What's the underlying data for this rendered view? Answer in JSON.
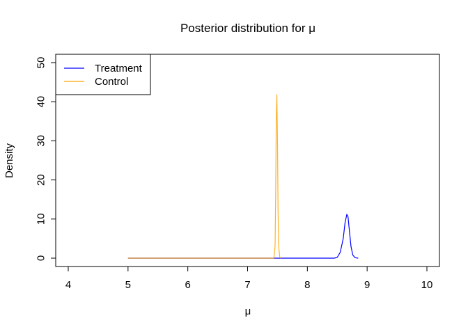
{
  "chart_data": {
    "type": "line",
    "title": "Posterior distribution for μ",
    "xlabel": "μ",
    "ylabel": "Density",
    "xlim": [
      4,
      10
    ],
    "ylim": [
      0,
      50
    ],
    "xticks": [
      4,
      5,
      6,
      7,
      8,
      9,
      10
    ],
    "yticks": [
      0,
      10,
      20,
      30,
      40,
      50
    ],
    "legend_position": "top-left",
    "grid": false,
    "series": [
      {
        "name": "Treatment",
        "color": "#0000ff",
        "x": [
          5.0,
          8.45,
          8.5,
          8.55,
          8.6,
          8.63,
          8.66,
          8.68,
          8.7,
          8.73,
          8.76,
          8.8,
          8.85
        ],
        "y": [
          0,
          0,
          0.2,
          1.5,
          5.0,
          9.0,
          11.2,
          10.6,
          7.5,
          3.0,
          0.8,
          0.1,
          0
        ]
      },
      {
        "name": "Control",
        "color": "#ffa500",
        "x": [
          5.0,
          7.44,
          7.46,
          7.47,
          7.48,
          7.49,
          7.5,
          7.51,
          7.52,
          7.54,
          7.55
        ],
        "y": [
          0,
          0,
          3.0,
          16.0,
          36.0,
          41.8,
          30.0,
          12.0,
          3.0,
          0.2,
          0
        ]
      }
    ]
  }
}
